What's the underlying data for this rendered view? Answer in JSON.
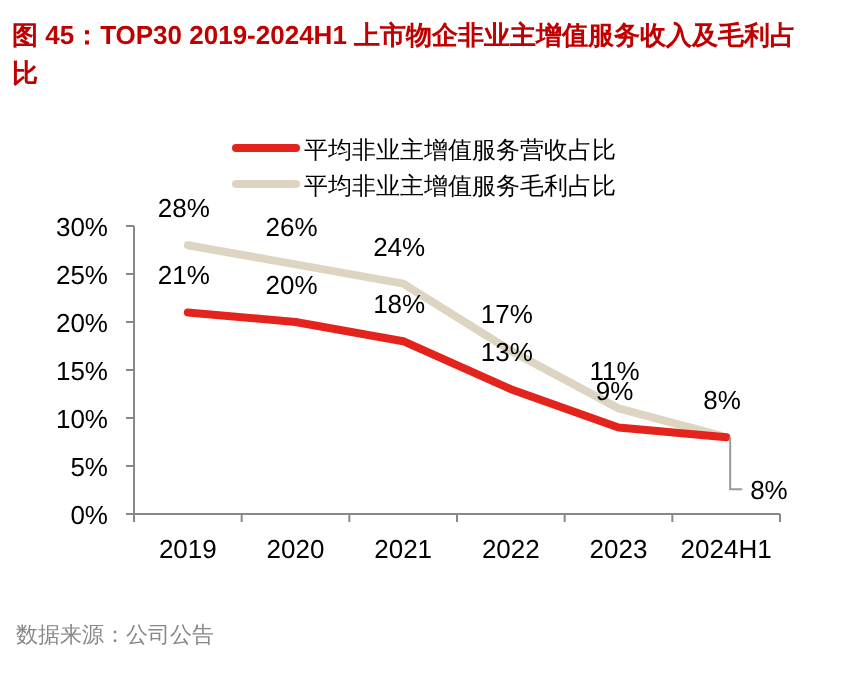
{
  "chart_data": {
    "type": "line",
    "title": "图 45：TOP30 2019-2024H1 上市物企非业主增值服务收入及毛利占比",
    "categories": [
      "2019",
      "2020",
      "2021",
      "2022",
      "2023",
      "2024H1"
    ],
    "series": [
      {
        "name": "平均非业主增值服务营收占比",
        "color": "#e3231c",
        "values": [
          21,
          20,
          18,
          13,
          9,
          8
        ],
        "value_labels": [
          "21%",
          "20%",
          "18%",
          "13%",
          "9%",
          "8%"
        ]
      },
      {
        "name": "平均非业主增值服务毛利占比",
        "color": "#ddd5c2",
        "values": [
          28,
          26,
          24,
          17,
          11,
          8
        ],
        "value_labels": [
          "28%",
          "26%",
          "24%",
          "17%",
          "11%",
          "8%"
        ]
      }
    ],
    "ylim": [
      0,
      30
    ],
    "yticks": [
      {
        "value": 0,
        "label": "0%"
      },
      {
        "value": 5,
        "label": "5%"
      },
      {
        "value": 10,
        "label": "10%"
      },
      {
        "value": 15,
        "label": "15%"
      },
      {
        "value": 20,
        "label": "20%"
      },
      {
        "value": 25,
        "label": "25%"
      },
      {
        "value": 30,
        "label": "30%"
      }
    ],
    "legend": "top",
    "grid": false,
    "annotations": [
      "数据来源：公司公告"
    ]
  }
}
